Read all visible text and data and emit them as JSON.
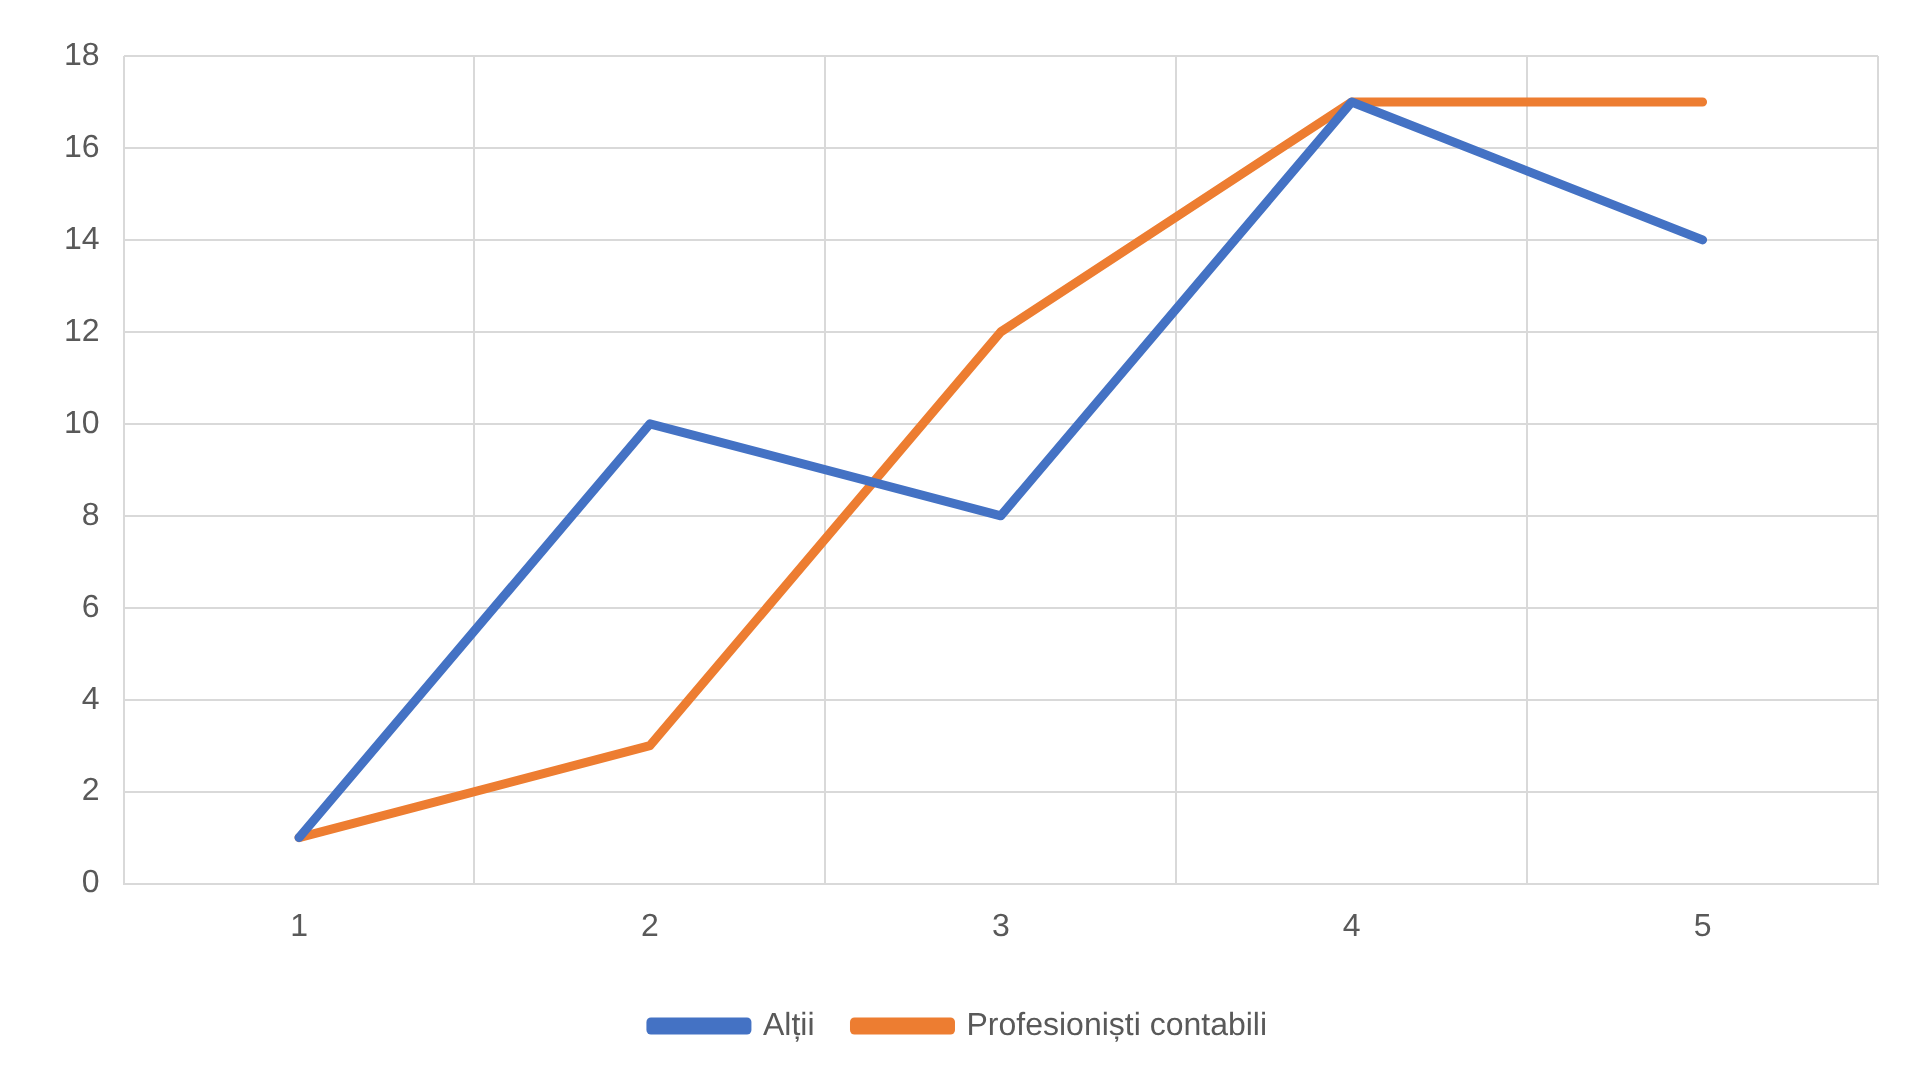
{
  "chart_data": {
    "type": "line",
    "categories": [
      "1",
      "2",
      "3",
      "4",
      "5"
    ],
    "series": [
      {
        "name": "Alții",
        "color": "#4472c4",
        "values": [
          1,
          10,
          8,
          17,
          14
        ]
      },
      {
        "name": "Profesioniști contabili",
        "color": "#ed7d31",
        "values": [
          1,
          3,
          12,
          17,
          17
        ]
      }
    ],
    "ylim": [
      0,
      18
    ],
    "yticks": [
      0,
      2,
      4,
      6,
      8,
      10,
      12,
      14,
      16,
      18
    ],
    "grid": true,
    "legend": "bottom",
    "marker": "none",
    "line_style": "solid"
  }
}
